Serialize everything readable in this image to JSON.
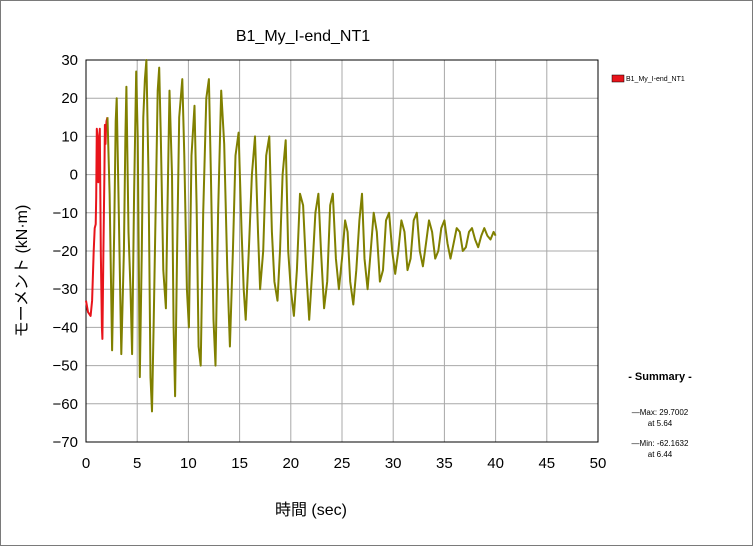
{
  "chart_data": {
    "type": "line",
    "title": "B1_My_I-end_NT1",
    "xlabel": "時間 (sec)",
    "ylabel": "モーメント (kN·m)",
    "xlim": [
      0,
      50
    ],
    "ylim": [
      -70,
      30
    ],
    "xticks": [
      0,
      5,
      10,
      15,
      20,
      25,
      30,
      35,
      40,
      45,
      50
    ],
    "yticks": [
      30,
      20,
      10,
      0,
      -10,
      -20,
      -30,
      -40,
      -50,
      -60,
      -70
    ],
    "grid": true,
    "legend": {
      "placement": "top-right",
      "entries": [
        {
          "label": "B1_My_I-end_NT1",
          "color": "#e8141b"
        }
      ]
    },
    "series": [
      {
        "color": "#e8141b",
        "points": [
          [
            0.0,
            -33
          ],
          [
            0.2,
            -36
          ],
          [
            0.45,
            -37
          ],
          [
            0.6,
            -33
          ],
          [
            0.75,
            -20
          ],
          [
            0.85,
            -14
          ],
          [
            0.95,
            -13
          ],
          [
            1.0,
            -6
          ],
          [
            1.05,
            12
          ],
          [
            1.12,
            10
          ],
          [
            1.2,
            -2
          ],
          [
            1.28,
            8
          ],
          [
            1.35,
            12
          ],
          [
            1.45,
            -20
          ],
          [
            1.55,
            -40
          ],
          [
            1.6,
            -43
          ],
          [
            1.7,
            -20
          ],
          [
            1.8,
            0
          ],
          [
            1.85,
            13
          ],
          [
            1.9,
            8
          ],
          [
            1.95,
            12
          ],
          [
            2.0,
            14
          ],
          [
            2.1,
            15
          ]
        ]
      },
      {
        "color": "#808000",
        "points": [
          [
            2.1,
            15
          ],
          [
            2.3,
            -5
          ],
          [
            2.55,
            -46
          ],
          [
            2.75,
            -15
          ],
          [
            2.9,
            14
          ],
          [
            3.0,
            20
          ],
          [
            3.2,
            -10
          ],
          [
            3.45,
            -47
          ],
          [
            3.7,
            -20
          ],
          [
            3.85,
            10
          ],
          [
            3.95,
            23
          ],
          [
            4.15,
            -15
          ],
          [
            4.35,
            -30
          ],
          [
            4.5,
            -47
          ],
          [
            4.7,
            -5
          ],
          [
            4.9,
            27
          ],
          [
            5.05,
            10
          ],
          [
            5.25,
            -53
          ],
          [
            5.45,
            -20
          ],
          [
            5.6,
            15
          ],
          [
            5.75,
            25
          ],
          [
            5.9,
            30
          ],
          [
            6.1,
            0
          ],
          [
            6.3,
            -53
          ],
          [
            6.45,
            -62
          ],
          [
            6.6,
            -40
          ],
          [
            6.8,
            -10
          ],
          [
            7.0,
            22
          ],
          [
            7.15,
            28
          ],
          [
            7.3,
            10
          ],
          [
            7.55,
            -25
          ],
          [
            7.8,
            -35
          ],
          [
            7.95,
            -10
          ],
          [
            8.15,
            22
          ],
          [
            8.4,
            0
          ],
          [
            8.55,
            -40
          ],
          [
            8.7,
            -58
          ],
          [
            8.9,
            -20
          ],
          [
            9.1,
            15
          ],
          [
            9.4,
            25
          ],
          [
            9.6,
            5
          ],
          [
            9.85,
            -30
          ],
          [
            10.05,
            -40
          ],
          [
            10.3,
            5
          ],
          [
            10.6,
            18
          ],
          [
            10.8,
            -8
          ],
          [
            11.0,
            -45
          ],
          [
            11.2,
            -50
          ],
          [
            11.45,
            -10
          ],
          [
            11.75,
            20
          ],
          [
            12.0,
            25
          ],
          [
            12.2,
            0
          ],
          [
            12.45,
            -38
          ],
          [
            12.65,
            -50
          ],
          [
            12.9,
            -10
          ],
          [
            13.2,
            22
          ],
          [
            13.5,
            8
          ],
          [
            13.8,
            -25
          ],
          [
            14.05,
            -45
          ],
          [
            14.35,
            -20
          ],
          [
            14.6,
            5
          ],
          [
            14.9,
            11
          ],
          [
            15.2,
            -15
          ],
          [
            15.4,
            -30
          ],
          [
            15.6,
            -38
          ],
          [
            15.9,
            -20
          ],
          [
            16.2,
            0
          ],
          [
            16.5,
            10
          ],
          [
            16.8,
            -15
          ],
          [
            17.0,
            -30
          ],
          [
            17.3,
            -20
          ],
          [
            17.6,
            5
          ],
          [
            17.9,
            10
          ],
          [
            18.15,
            -15
          ],
          [
            18.4,
            -28
          ],
          [
            18.7,
            -33
          ],
          [
            18.95,
            -20
          ],
          [
            19.2,
            0
          ],
          [
            19.5,
            9
          ],
          [
            19.75,
            -20
          ],
          [
            20.0,
            -30
          ],
          [
            20.3,
            -37
          ],
          [
            20.6,
            -25
          ],
          [
            20.9,
            -5
          ],
          [
            21.2,
            -8
          ],
          [
            21.5,
            -25
          ],
          [
            21.8,
            -38
          ],
          [
            22.1,
            -25
          ],
          [
            22.4,
            -10
          ],
          [
            22.7,
            -5
          ],
          [
            22.95,
            -20
          ],
          [
            23.25,
            -35
          ],
          [
            23.55,
            -28
          ],
          [
            23.85,
            -8
          ],
          [
            24.1,
            -5
          ],
          [
            24.4,
            -22
          ],
          [
            24.7,
            -30
          ],
          [
            25.0,
            -22
          ],
          [
            25.3,
            -12
          ],
          [
            25.55,
            -15
          ],
          [
            25.8,
            -28
          ],
          [
            26.1,
            -34
          ],
          [
            26.4,
            -25
          ],
          [
            26.7,
            -12
          ],
          [
            26.95,
            -5
          ],
          [
            27.2,
            -22
          ],
          [
            27.5,
            -30
          ],
          [
            27.8,
            -20
          ],
          [
            28.1,
            -10
          ],
          [
            28.4,
            -15
          ],
          [
            28.7,
            -28
          ],
          [
            29.0,
            -25
          ],
          [
            29.3,
            -12
          ],
          [
            29.6,
            -10
          ],
          [
            29.9,
            -20
          ],
          [
            30.2,
            -26
          ],
          [
            30.5,
            -20
          ],
          [
            30.8,
            -12
          ],
          [
            31.1,
            -15
          ],
          [
            31.4,
            -25
          ],
          [
            31.7,
            -22
          ],
          [
            32.0,
            -12
          ],
          [
            32.3,
            -10
          ],
          [
            32.6,
            -20
          ],
          [
            32.9,
            -24
          ],
          [
            33.2,
            -18
          ],
          [
            33.5,
            -12
          ],
          [
            33.8,
            -15
          ],
          [
            34.1,
            -22
          ],
          [
            34.4,
            -20
          ],
          [
            34.7,
            -14
          ],
          [
            35.0,
            -12
          ],
          [
            35.3,
            -18
          ],
          [
            35.6,
            -22
          ],
          [
            35.9,
            -18
          ],
          [
            36.2,
            -14
          ],
          [
            36.5,
            -15
          ],
          [
            36.8,
            -20
          ],
          [
            37.1,
            -19
          ],
          [
            37.4,
            -15
          ],
          [
            37.7,
            -14
          ],
          [
            38.0,
            -17
          ],
          [
            38.3,
            -19
          ],
          [
            38.6,
            -16
          ],
          [
            38.9,
            -14
          ],
          [
            39.2,
            -16
          ],
          [
            39.5,
            -17
          ],
          [
            39.8,
            -15
          ],
          [
            40.0,
            -16
          ]
        ]
      }
    ],
    "summary": {
      "title": "- Summary -",
      "max_line": "—Max: 29.7002",
      "max_at": "at 5.64",
      "min_line": "—Min: -62.1632",
      "min_at": "at 6.44"
    }
  }
}
